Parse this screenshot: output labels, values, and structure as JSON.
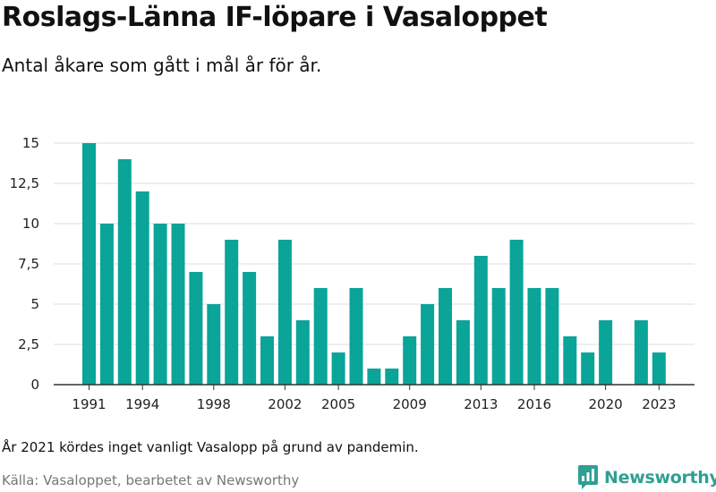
{
  "header": {
    "title": "Roslags-Länna IF-löpare i Vasaloppet",
    "subtitle": "Antal åkare som gått i mål år för år."
  },
  "footer": {
    "note": "År 2021 kördes inget vanligt Vasalopp på grund av pandemin.",
    "source": "Källa: Vasaloppet, bearbetet av Newsworthy",
    "brand": "Newsworthy"
  },
  "colors": {
    "bar": "#0aa499",
    "grid": "#dddddd",
    "axis": "#333333",
    "brand": "#2f9f93"
  },
  "chart_data": {
    "type": "bar",
    "title": "Roslags-Länna IF-löpare i Vasaloppet",
    "subtitle": "Antal åkare som gått i mål år för år.",
    "categories": [
      1991,
      1992,
      1993,
      1994,
      1995,
      1996,
      1997,
      1998,
      1999,
      2000,
      2001,
      2002,
      2003,
      2004,
      2005,
      2006,
      2007,
      2008,
      2009,
      2010,
      2011,
      2012,
      2013,
      2014,
      2015,
      2016,
      2017,
      2018,
      2019,
      2020,
      2021,
      2022,
      2023
    ],
    "values": [
      15,
      10,
      14,
      12,
      10,
      10,
      7,
      5,
      9,
      7,
      3,
      9,
      4,
      6,
      2,
      6,
      1,
      1,
      3,
      5,
      6,
      4,
      8,
      6,
      9,
      6,
      6,
      3,
      2,
      4,
      null,
      4,
      2
    ],
    "ylim": [
      0,
      15
    ],
    "yticks": [
      0,
      2.5,
      5,
      7.5,
      10,
      12.5,
      15
    ],
    "ytick_labels": [
      "0",
      "2,5",
      "5",
      "7,5",
      "10",
      "12,5",
      "15"
    ],
    "xticks": [
      1991,
      1994,
      1998,
      2002,
      2005,
      2009,
      2013,
      2016,
      2020,
      2023
    ],
    "xlabel": "",
    "ylabel": "",
    "grid": true,
    "legend": "none"
  }
}
